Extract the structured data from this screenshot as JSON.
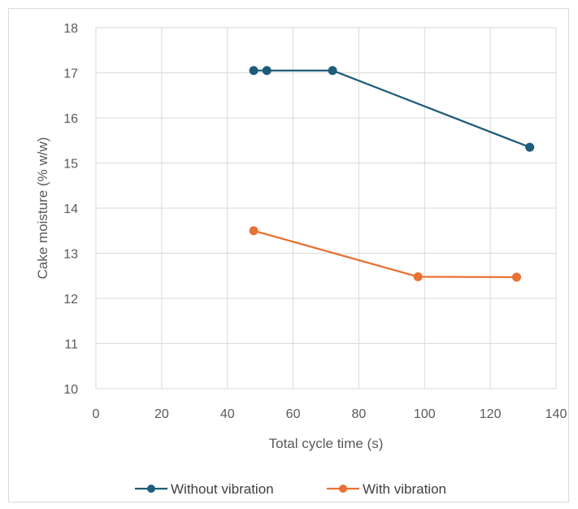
{
  "chart_data": {
    "type": "line",
    "title": "",
    "xlabel": "Total cycle time (s)",
    "ylabel": "Cake moisture (% w/w)",
    "xlim": [
      0,
      140
    ],
    "ylim": [
      10,
      18
    ],
    "xticks": [
      "0",
      "20",
      "40",
      "60",
      "80",
      "100",
      "120",
      "140"
    ],
    "yticks": [
      "10",
      "11",
      "12",
      "13",
      "14",
      "15",
      "16",
      "17",
      "18"
    ],
    "grid": true,
    "legend_position": "bottom",
    "series": [
      {
        "name": "Without vibration",
        "color": "#1f5c7a",
        "x": [
          48,
          52,
          72,
          132
        ],
        "y": [
          17.05,
          17.05,
          17.05,
          15.35
        ]
      },
      {
        "name": "With vibration",
        "color": "#e97132",
        "x": [
          48,
          98,
          128
        ],
        "y": [
          13.5,
          12.48,
          12.47
        ]
      }
    ]
  }
}
